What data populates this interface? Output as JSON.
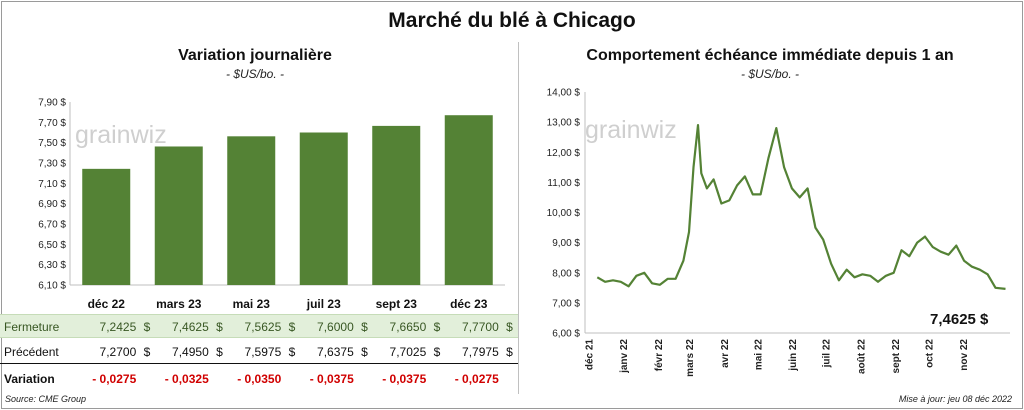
{
  "title": "Marché du blé à Chicago",
  "chart_data": [
    {
      "type": "bar",
      "title": "Variation  journalière",
      "subtitle": "- $US/bo. -",
      "categories": [
        "déc 22",
        "mars 23",
        "mai 23",
        "juil 23",
        "sept 23",
        "déc 23"
      ],
      "values": [
        7.2425,
        7.4625,
        7.5625,
        7.6,
        7.665,
        7.77
      ],
      "ylim": [
        6.1,
        7.9
      ],
      "yticks": [
        "7,90 $",
        "7,70 $",
        "7,50 $",
        "7,30 $",
        "7,10 $",
        "6,90 $",
        "6,70 $",
        "6,50 $",
        "6,30 $",
        "6,10 $"
      ],
      "bar_color": "#548235",
      "table": {
        "rows": [
          {
            "label": "Fermeture",
            "values": [
              "7,2425",
              "7,4625",
              "7,5625",
              "7,6000",
              "7,6650",
              "7,7700"
            ],
            "unit": "$"
          },
          {
            "label": "Précédent",
            "values": [
              "7,2700",
              "7,4950",
              "7,5975",
              "7,6375",
              "7,7025",
              "7,7975"
            ],
            "unit": "$"
          },
          {
            "label": "Variation",
            "values": [
              "- 0,0275",
              "- 0,0325",
              "- 0,0350",
              "- 0,0375",
              "- 0,0375",
              "- 0,0275"
            ],
            "unit": ""
          }
        ]
      }
    },
    {
      "type": "line",
      "title": "Comportement  échéance immédiate depuis 1 an",
      "subtitle": "- $US/bo. -",
      "ylim": [
        6.0,
        14.0
      ],
      "yticks": [
        "14,00 $",
        "13,00 $",
        "12,00 $",
        "11,00 $",
        "10,00 $",
        "9,00 $",
        "8,00 $",
        "7,00 $",
        "6,00 $"
      ],
      "xticks": [
        "déc 21",
        "janv 22",
        "févr 22",
        "mars 22",
        "avr 22",
        "mai 22",
        "juin 22",
        "juil 22",
        "août 22",
        "sept 22",
        "oct 22",
        "nov 22"
      ],
      "line_color": "#548235",
      "series": [
        {
          "x": [
            "2021-12-08",
            "2021-12-15",
            "2021-12-22",
            "2021-12-29",
            "2022-01-05",
            "2022-01-12",
            "2022-01-19",
            "2022-01-26",
            "2022-02-02",
            "2022-02-09",
            "2022-02-16",
            "2022-02-23",
            "2022-02-28",
            "2022-03-04",
            "2022-03-08",
            "2022-03-11",
            "2022-03-16",
            "2022-03-22",
            "2022-03-29",
            "2022-04-05",
            "2022-04-12",
            "2022-04-19",
            "2022-04-26",
            "2022-05-03",
            "2022-05-10",
            "2022-05-17",
            "2022-05-24",
            "2022-05-31",
            "2022-06-07",
            "2022-06-14",
            "2022-06-21",
            "2022-06-28",
            "2022-07-05",
            "2022-07-12",
            "2022-07-19",
            "2022-07-26",
            "2022-08-02",
            "2022-08-09",
            "2022-08-16",
            "2022-08-23",
            "2022-08-30",
            "2022-09-06",
            "2022-09-13",
            "2022-09-20",
            "2022-09-27",
            "2022-10-04",
            "2022-10-11",
            "2022-10-18",
            "2022-10-25",
            "2022-11-01",
            "2022-11-08",
            "2022-11-15",
            "2022-11-22",
            "2022-11-29",
            "2022-12-08"
          ],
          "y": [
            7.85,
            7.7,
            7.75,
            7.7,
            7.55,
            7.9,
            8.0,
            7.65,
            7.6,
            7.8,
            7.8,
            8.4,
            9.35,
            11.5,
            12.9,
            11.3,
            10.8,
            11.1,
            10.3,
            10.4,
            10.9,
            11.2,
            10.6,
            10.6,
            11.8,
            12.8,
            11.5,
            10.8,
            10.5,
            10.8,
            9.5,
            9.1,
            8.3,
            7.75,
            8.1,
            7.85,
            7.95,
            7.9,
            7.7,
            7.9,
            8.0,
            8.75,
            8.55,
            9.0,
            9.2,
            8.85,
            8.7,
            8.6,
            8.9,
            8.4,
            8.2,
            8.1,
            7.95,
            7.5,
            7.4625
          ]
        }
      ],
      "last_value_label": "7,4625 $"
    }
  ],
  "watermark": "grainwiz",
  "source": "Source: CME Group",
  "updated": "Mise à jour: jeu 08 déc 2022"
}
